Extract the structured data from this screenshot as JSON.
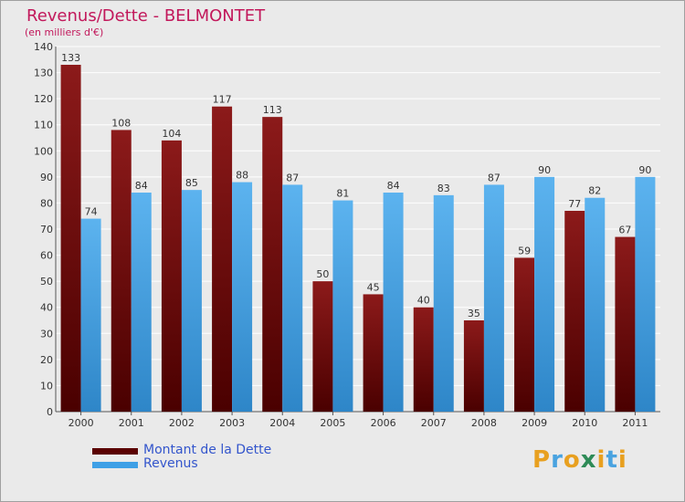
{
  "title": "Revenus/Dette - BELMONTET",
  "subtitle": "(en milliers d'€)",
  "chart_data": {
    "type": "bar",
    "title": "Revenus/Dette - BELMONTET",
    "subtitle": "(en milliers d'€)",
    "categories": [
      "2000",
      "2001",
      "2002",
      "2003",
      "2004",
      "2005",
      "2006",
      "2007",
      "2008",
      "2009",
      "2010",
      "2011"
    ],
    "series": [
      {
        "name": "Montant de la Dette",
        "color": "#7a0a0a",
        "values": [
          133,
          108,
          104,
          117,
          113,
          50,
          45,
          40,
          35,
          59,
          77,
          67
        ]
      },
      {
        "name": "Revenus",
        "color": "#4aa3e0",
        "values": [
          74,
          84,
          85,
          88,
          87,
          81,
          84,
          83,
          87,
          90,
          82,
          90
        ]
      }
    ],
    "ylim": [
      0,
      140
    ],
    "yticks": [
      0,
      10,
      20,
      30,
      40,
      50,
      60,
      70,
      80,
      90,
      100,
      110,
      120,
      130,
      140
    ],
    "grid": true,
    "legend_position": "bottom-left"
  },
  "legend": {
    "items": [
      {
        "label": "Montant de la Dette",
        "color": "#7a0a0a"
      },
      {
        "label": "Revenus",
        "color": "#4aa3e0"
      }
    ]
  },
  "logo": {
    "letters": [
      "P",
      "r",
      "o",
      "x",
      "i",
      "t",
      "i"
    ],
    "colors": [
      "#e8a020",
      "#4aa3e0",
      "#e8a020",
      "#2e8b57",
      "#e8a020",
      "#4aa3e0",
      "#e8a020"
    ]
  }
}
